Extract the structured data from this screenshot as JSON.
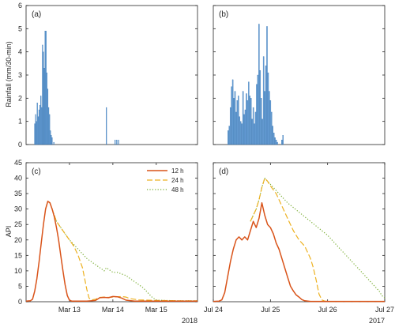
{
  "figure": {
    "ylabel_top": "Rainfall (mm/30-min)",
    "ylabel_bottom": "API"
  },
  "chart_data": [
    {
      "panel": "a",
      "label": "(a)",
      "type": "bar",
      "ylim": [
        0,
        6
      ],
      "yticks": [
        0,
        1,
        2,
        3,
        4,
        5,
        6
      ],
      "xlim": [
        12.0,
        15.95
      ],
      "color": "#4f8fd0",
      "x": [
        12.2,
        12.22,
        12.24,
        12.26,
        12.28,
        12.3,
        12.32,
        12.34,
        12.36,
        12.38,
        12.4,
        12.42,
        12.44,
        12.46,
        12.48,
        12.5,
        12.52,
        12.54,
        12.56,
        12.58,
        12.6,
        12.64,
        13.85,
        14.05,
        14.09,
        14.13
      ],
      "values": [
        0.9,
        1.3,
        1.0,
        1.8,
        1.2,
        1.5,
        1.7,
        2.1,
        1.6,
        4.3,
        4.0,
        3.3,
        4.9,
        4.9,
        3.1,
        2.4,
        1.6,
        1.3,
        0.6,
        0.4,
        0.3,
        0.1,
        1.6,
        0.2,
        0.2,
        0.2
      ]
    },
    {
      "panel": "b",
      "label": "(b)",
      "type": "bar",
      "ylim": [
        0,
        6
      ],
      "yticks": [
        0,
        1,
        2,
        3,
        4,
        5,
        6
      ],
      "xlim": [
        24.0,
        27.0
      ],
      "color": "#4f8fd0",
      "x": [
        24.26,
        24.28,
        24.3,
        24.32,
        24.34,
        24.36,
        24.38,
        24.4,
        24.42,
        24.44,
        24.46,
        24.48,
        24.5,
        24.52,
        24.54,
        24.56,
        24.58,
        24.6,
        24.62,
        24.64,
        24.66,
        24.68,
        24.7,
        24.72,
        24.74,
        24.76,
        24.78,
        24.8,
        24.82,
        24.84,
        24.86,
        24.88,
        24.9,
        24.92,
        24.94,
        24.96,
        24.98,
        25.0,
        25.02,
        25.04,
        25.06,
        25.08,
        25.1,
        25.12,
        25.2,
        25.22
      ],
      "values": [
        0.6,
        0.8,
        1.6,
        2.5,
        2.8,
        2.0,
        2.3,
        1.4,
        1.9,
        2.1,
        1.2,
        1.0,
        0.9,
        2.3,
        1.3,
        1.5,
        2.2,
        1.9,
        2.7,
        2.1,
        2.0,
        1.1,
        1.6,
        0.9,
        1.4,
        2.6,
        3.0,
        5.2,
        3.2,
        2.0,
        1.1,
        3.8,
        2.3,
        3.4,
        5.1,
        3.1,
        2.3,
        1.9,
        1.4,
        0.8,
        0.5,
        0.3,
        0.2,
        0.1,
        0.2,
        0.4
      ]
    },
    {
      "panel": "c",
      "label": "(c)",
      "type": "line",
      "ylim": [
        0,
        45
      ],
      "yticks": [
        0,
        5,
        10,
        15,
        20,
        25,
        30,
        35,
        40,
        45
      ],
      "xlim": [
        12.0,
        15.95
      ],
      "xticks": [
        13,
        14,
        15
      ],
      "xticklabels": [
        "Mar 13",
        "Mar 14",
        "Mar 15"
      ],
      "year": "2018",
      "legend_position": "top-right",
      "legend": [
        "12 h",
        "24 h",
        "48 h"
      ],
      "series": [
        {
          "name": "12 h",
          "style": "solid",
          "color": "#d95319",
          "x": [
            12.0,
            12.1,
            12.15,
            12.2,
            12.25,
            12.3,
            12.35,
            12.4,
            12.45,
            12.5,
            12.55,
            12.6,
            12.65,
            12.7,
            12.75,
            12.8,
            12.85,
            12.9,
            12.95,
            13.0,
            13.05,
            13.1,
            13.2,
            13.4,
            13.6,
            13.7,
            13.8,
            13.9,
            14.0,
            14.1,
            14.2,
            14.3,
            14.5,
            14.8,
            15.2,
            15.95
          ],
          "y": [
            0.2,
            0.3,
            0.8,
            3.5,
            7.5,
            13,
            19,
            25,
            30,
            32.5,
            32,
            30,
            27.5,
            24,
            20,
            15,
            10,
            5.5,
            2,
            0.5,
            0.2,
            0.2,
            0.2,
            0.2,
            0.4,
            1.3,
            1.4,
            1.3,
            1.7,
            1.6,
            1.2,
            0.5,
            0.2,
            0.2,
            0.2,
            0.2
          ]
        },
        {
          "name": "24 h",
          "style": "dashed",
          "color": "#edb120",
          "x": [
            12.45,
            12.5,
            12.55,
            12.6,
            12.65,
            12.7,
            12.8,
            12.9,
            13.0,
            13.1,
            13.2,
            13.3,
            13.4,
            13.45,
            13.5,
            13.6,
            13.7,
            13.8,
            13.9,
            14.0,
            14.1,
            14.2,
            14.3,
            14.4,
            14.6,
            15.0,
            15.5,
            15.95
          ],
          "y": [
            30,
            32.5,
            32,
            30,
            28,
            26,
            24,
            22,
            20,
            18,
            15,
            11,
            4,
            1.2,
            0.6,
            0.8,
            1.4,
            1.5,
            1.4,
            1.5,
            1.6,
            1.7,
            1.5,
            1.0,
            0.6,
            0.4,
            0.3,
            0.3
          ]
        },
        {
          "name": "48 h",
          "style": "dotted",
          "color": "#77ac30",
          "x": [
            12.45,
            12.5,
            12.55,
            12.6,
            12.65,
            12.7,
            12.8,
            12.9,
            13.0,
            13.1,
            13.2,
            13.3,
            13.4,
            13.5,
            13.6,
            13.7,
            13.8,
            13.85,
            13.9,
            14.0,
            14.1,
            14.2,
            14.3,
            14.4,
            14.5,
            14.6,
            14.7,
            14.8,
            14.9,
            15.0,
            15.2,
            15.5,
            15.95
          ],
          "y": [
            30,
            32.5,
            32,
            30,
            28,
            26,
            24,
            22,
            20,
            18.5,
            17,
            15.5,
            14,
            13,
            12,
            11,
            10,
            11,
            10.5,
            9.5,
            9.5,
            9,
            8.5,
            7.5,
            6.5,
            5.5,
            4.5,
            3,
            1.5,
            0.5,
            0.4,
            0.3,
            0.3
          ]
        }
      ]
    },
    {
      "panel": "d",
      "label": "(d)",
      "type": "line",
      "ylim": [
        0,
        45
      ],
      "yticks": [
        0,
        5,
        10,
        15,
        20,
        25,
        30,
        35,
        40,
        45
      ],
      "xlim": [
        24.0,
        27.0
      ],
      "xticks": [
        24,
        25,
        26,
        27
      ],
      "xticklabels": [
        "Jul 24",
        "Jul 25",
        "Jul 26",
        "Jul 27"
      ],
      "year": "2017",
      "series": [
        {
          "name": "12 h",
          "style": "solid",
          "color": "#d95319",
          "x": [
            24.0,
            24.1,
            24.15,
            24.2,
            24.25,
            24.3,
            24.35,
            24.4,
            24.45,
            24.5,
            24.55,
            24.6,
            24.65,
            24.7,
            24.75,
            24.8,
            24.85,
            24.9,
            24.95,
            25.0,
            25.05,
            25.1,
            25.15,
            25.2,
            25.25,
            25.3,
            25.35,
            25.4,
            25.45,
            25.5,
            25.55,
            25.6,
            25.7,
            27.0
          ],
          "y": [
            0.1,
            0.2,
            0.6,
            3,
            8,
            13,
            17,
            20,
            21,
            20,
            21,
            20,
            23,
            26,
            24,
            27,
            32,
            28,
            25,
            24,
            22,
            19,
            17,
            14,
            11,
            8,
            5,
            3.5,
            2.2,
            1.5,
            0.7,
            0.3,
            0.1,
            0.1
          ]
        },
        {
          "name": "24 h",
          "style": "dashed",
          "color": "#edb120",
          "x": [
            24.65,
            24.7,
            24.75,
            24.8,
            24.85,
            24.9,
            24.95,
            25.0,
            25.1,
            25.2,
            25.3,
            25.4,
            25.5,
            25.6,
            25.7,
            25.75,
            25.8,
            25.85,
            25.9,
            25.95,
            26.0,
            27.0
          ],
          "y": [
            26,
            28,
            30,
            33,
            37,
            40,
            39,
            37.5,
            35,
            31,
            27,
            23,
            20,
            18,
            14,
            11,
            7,
            2.5,
            0.6,
            0.2,
            0.1,
            0.1
          ]
        },
        {
          "name": "48 h",
          "style": "dotted",
          "color": "#77ac30",
          "x": [
            24.65,
            24.7,
            24.75,
            24.8,
            24.85,
            24.9,
            24.95,
            25.0,
            25.1,
            25.2,
            25.3,
            25.4,
            25.5,
            25.6,
            25.7,
            25.8,
            25.9,
            26.0,
            26.1,
            26.2,
            26.3,
            26.4,
            26.5,
            26.6,
            26.7,
            26.8,
            26.9,
            26.95,
            27.0
          ],
          "y": [
            26,
            28,
            30,
            33,
            37,
            40,
            39,
            38,
            36,
            34,
            32,
            30.5,
            29,
            27.5,
            26,
            24.5,
            23,
            21.5,
            19.5,
            17.5,
            15.5,
            13.5,
            11.5,
            9.5,
            7.5,
            5.5,
            3.5,
            2,
            1.2
          ]
        }
      ]
    }
  ]
}
